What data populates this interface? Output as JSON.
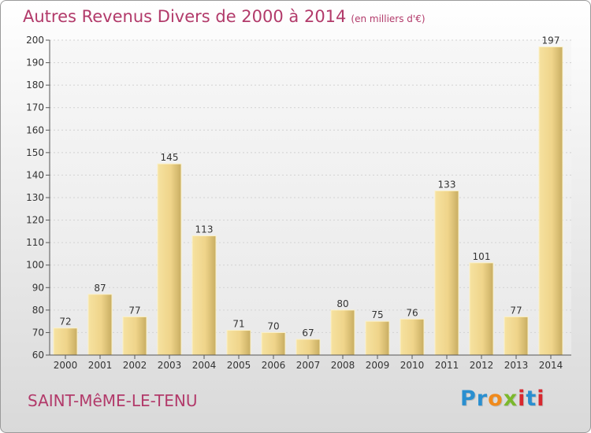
{
  "title": "Autres Revenus Divers de 2000 à 2014",
  "subtitle": "(en milliers d'€)",
  "place_name": "SAINT-MêME-LE-TENU",
  "logo": {
    "text": "Proxiti",
    "letters": [
      {
        "ch": "P",
        "color": "#2a8fd0"
      },
      {
        "ch": "r",
        "color": "#2a8fd0"
      },
      {
        "ch": "o",
        "color": "#f08a1c"
      },
      {
        "ch": "x",
        "color": "#7bb82c"
      },
      {
        "ch": "i",
        "color": "#d8282f"
      },
      {
        "ch": "t",
        "color": "#2a8fd0"
      },
      {
        "ch": "i",
        "color": "#d8282f"
      }
    ]
  },
  "colors": {
    "accent": "#b23a6a",
    "bar_light": "#f6e2a0",
    "bar_dark": "#c8ad62"
  },
  "chart_data": {
    "type": "bar",
    "categories": [
      "2000",
      "2001",
      "2002",
      "2003",
      "2004",
      "2005",
      "2006",
      "2007",
      "2008",
      "2009",
      "2010",
      "2011",
      "2012",
      "2013",
      "2014"
    ],
    "values": [
      72,
      87,
      77,
      145,
      113,
      71,
      70,
      67,
      80,
      75,
      76,
      133,
      101,
      77,
      197
    ],
    "ylim": [
      60,
      200
    ],
    "yticks": [
      60,
      70,
      80,
      90,
      100,
      110,
      120,
      130,
      140,
      150,
      160,
      170,
      180,
      190,
      200
    ],
    "grid": true,
    "title": "Autres Revenus Divers de 2000 à 2014",
    "xlabel": "",
    "ylabel": ""
  }
}
